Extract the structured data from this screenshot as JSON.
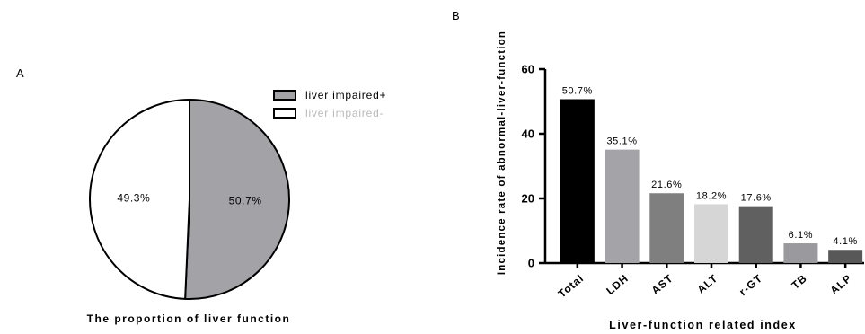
{
  "panel_a": {
    "letter": "A"
  },
  "panel_b": {
    "letter": "B"
  },
  "chart_data": [
    {
      "type": "pie",
      "title": "The proportion of liver function",
      "slices": [
        {
          "name": "liver impaired+",
          "value": 50.7,
          "label": "50.7%",
          "color": "#a3a3a7"
        },
        {
          "name": "liver impaired-",
          "value": 49.3,
          "label": "49.3%",
          "color": "#ffffff"
        }
      ],
      "legend_position": "top-right"
    },
    {
      "type": "bar",
      "xlabel": "Liver-function related index",
      "ylabel": "Incidence rate of abnormal-liver-function",
      "categories": [
        "Total",
        "LDH",
        "AST",
        "ALT",
        "r-GT",
        "TB",
        "ALP"
      ],
      "values": [
        50.7,
        35.1,
        21.6,
        18.2,
        17.6,
        6.1,
        4.1
      ],
      "data_labels": [
        "50.7%",
        "35.1%",
        "21.6%",
        "18.2%",
        "17.6%",
        "6.1%",
        "4.1%"
      ],
      "colors": [
        "#000000",
        "#a3a3a8",
        "#7f7f7f",
        "#d6d6d6",
        "#606060",
        "#9a9a9e",
        "#585858"
      ],
      "yticks": [
        "0",
        "20",
        "40",
        "60"
      ],
      "ylim": [
        0,
        60
      ],
      "grid": false
    }
  ]
}
